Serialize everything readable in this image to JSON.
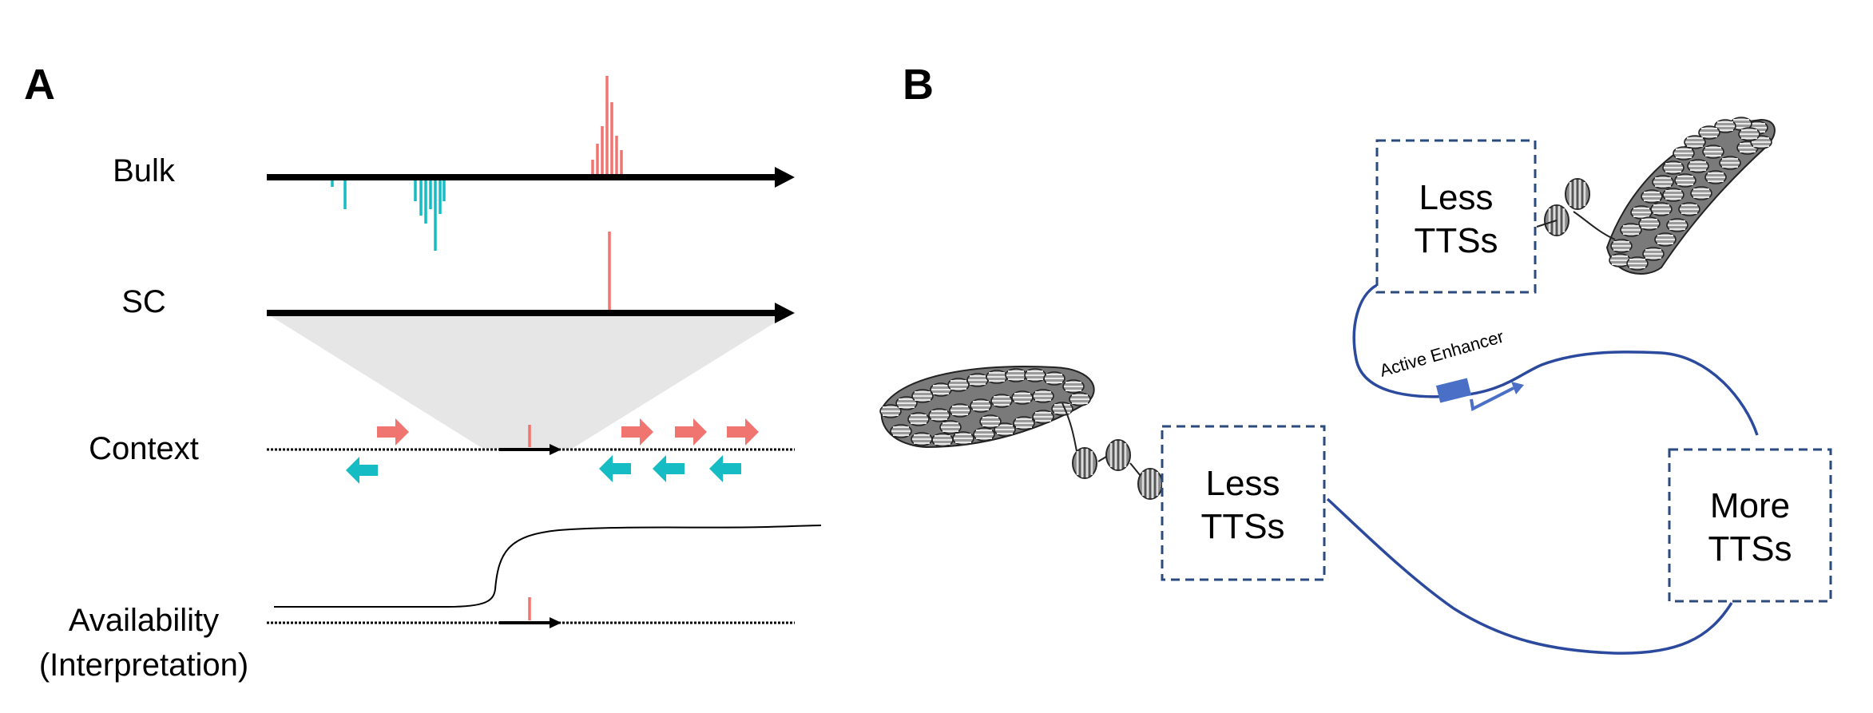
{
  "panels": {
    "a": "A",
    "b": "B"
  },
  "panel_a": {
    "row_bulk": "Bulk",
    "row_sc": "SC",
    "row_context": "Context",
    "row_availability_1": "Availability",
    "row_availability_2": "(Interpretation)"
  },
  "panel_b": {
    "box_top_line1": "Less",
    "box_top_line2": "TTSs",
    "box_mid_line1": "Less",
    "box_mid_line2": "TTSs",
    "box_right_line1": "More",
    "box_right_line2": "TTSs",
    "enhancer_label": "Active Enhancer"
  },
  "colors": {
    "plus_strand": "#f07470",
    "minus_strand": "#16bcc4",
    "fiber": "#2b4a9e",
    "enhancer": "#4a6fc7",
    "cone": "#e6e6e6",
    "box_border": "#2b4a7e"
  }
}
